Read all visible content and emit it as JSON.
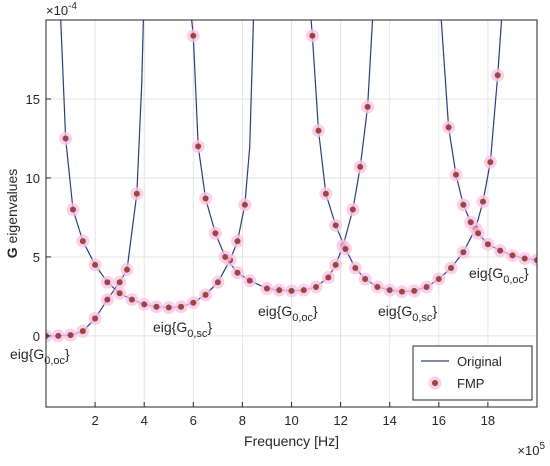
{
  "chart_data": {
    "type": "line",
    "xlabel": "Frequency [Hz]",
    "ylabel_symbol": "G",
    "ylabel": "eigenvalues",
    "x_exponent": {
      "base": "×10",
      "power": "5"
    },
    "y_exponent": {
      "base": "×10",
      "power": "-4"
    },
    "xlim": [
      0,
      20
    ],
    "ylim": [
      -4.5,
      20
    ],
    "xticks": [
      2,
      4,
      6,
      8,
      10,
      12,
      14,
      16,
      18
    ],
    "yticks": [
      0,
      5,
      10,
      15
    ],
    "grid": true,
    "legend": "lower right",
    "annotations": [
      {
        "prefix": "eig{G",
        "subscript": "0,oc",
        "suffix": "}"
      },
      {
        "prefix": "eig{G",
        "subscript": "0,sc",
        "suffix": "}"
      },
      {
        "prefix": "eig{G",
        "subscript": "0,oc",
        "suffix": "}"
      },
      {
        "prefix": "eig{G",
        "subscript": "0,sc",
        "suffix": "}"
      },
      {
        "prefix": "eig{G",
        "subscript": "0,oc",
        "suffix": "}"
      }
    ],
    "series": [
      {
        "name": "Original",
        "color": "#2b3a8f",
        "curves": [
          {
            "x": [
              0,
              0.5,
              1,
              1.5,
              2,
              2.5,
              3,
              3.3,
              3.7,
              3.9,
              4.0
            ],
            "y": [
              0,
              0,
              0.05,
              0.3,
              1.1,
              2.3,
              3.4,
              4.2,
              9,
              16,
              22
            ]
          },
          {
            "x": [
              0.6,
              0.8,
              1.1,
              1.5,
              2,
              2.5,
              3,
              3.5,
              4,
              4.5,
              5,
              5.5,
              6,
              6.5,
              7,
              7.5,
              7.8,
              8.1,
              8.3,
              8.45
            ],
            "y": [
              20,
              12.5,
              8,
              6,
              4.5,
              3.4,
              2.7,
              2.3,
              2.0,
              1.85,
              1.8,
              1.85,
              2.1,
              2.6,
              3.4,
              4.8,
              6,
              8.3,
              12,
              20
            ]
          },
          {
            "x": [
              5.8,
              6.0,
              6.2,
              6.5,
              6.9,
              7.3,
              7.8,
              8.3,
              9,
              9.5,
              10,
              10.5,
              11,
              11.5,
              11.8,
              12.1,
              12.5,
              12.8,
              13.1,
              13.3
            ],
            "y": [
              22,
              19,
              12,
              8.7,
              6.5,
              5,
              4,
              3.5,
              3,
              2.9,
              2.85,
              2.9,
              3.1,
              3.7,
              4.5,
              5.7,
              8,
              10.7,
              14.5,
              20
            ]
          },
          {
            "x": [
              10.6,
              10.85,
              11.1,
              11.4,
              11.8,
              12.2,
              12.6,
              13,
              13.5,
              14,
              14.5,
              15,
              15.5,
              16,
              16.5,
              17,
              17.5,
              17.8,
              18.1,
              18.4,
              18.6
            ],
            "y": [
              24,
              19,
              13,
              9,
              7,
              5.5,
              4.3,
              3.6,
              3.1,
              2.9,
              2.8,
              2.85,
              3.1,
              3.6,
              4.3,
              5.3,
              6.8,
              8.5,
              11,
              16.5,
              21
            ]
          },
          {
            "x": [
              16.1,
              16.4,
              16.7,
              17,
              17.3,
              17.6,
              18,
              18.5,
              19,
              19.5,
              20
            ],
            "y": [
              20,
              13.2,
              10.2,
              8.3,
              7.2,
              6.5,
              5.8,
              5.4,
              5.1,
              4.9,
              4.8
            ]
          }
        ]
      },
      {
        "name": "FMP",
        "color": "#a0443c",
        "halo": "#f7c4e8",
        "curves": [
          {
            "x": [
              0,
              0.5,
              1,
              1.5,
              2,
              2.5,
              3,
              3.3,
              3.7
            ],
            "y": [
              0,
              0,
              0.05,
              0.3,
              1.1,
              2.3,
              3.4,
              4.2,
              9
            ]
          },
          {
            "x": [
              0.8,
              1.1,
              1.5,
              2,
              2.5,
              3,
              3.5,
              4,
              4.5,
              5,
              5.5,
              6,
              6.5,
              7,
              7.5,
              7.8,
              8.1
            ],
            "y": [
              12.5,
              8,
              6,
              4.5,
              3.4,
              2.7,
              2.3,
              2.0,
              1.85,
              1.8,
              1.85,
              2.1,
              2.6,
              3.4,
              4.8,
              6,
              8.3
            ]
          },
          {
            "x": [
              6.0,
              6.2,
              6.5,
              6.9,
              7.3,
              7.8,
              8.3,
              9,
              9.5,
              10,
              10.5,
              11,
              11.5,
              11.8,
              12.1,
              12.5,
              12.8,
              13.1
            ],
            "y": [
              19,
              12,
              8.7,
              6.5,
              5,
              4,
              3.5,
              3,
              2.9,
              2.85,
              2.9,
              3.1,
              3.7,
              4.5,
              5.7,
              8,
              10.7,
              14.5
            ]
          },
          {
            "x": [
              10.85,
              11.1,
              11.4,
              11.8,
              12.2,
              12.6,
              13,
              13.5,
              14,
              14.5,
              15,
              15.5,
              16,
              16.5,
              17,
              17.5,
              17.8,
              18.1,
              18.4
            ],
            "y": [
              19,
              13,
              9,
              7,
              5.5,
              4.3,
              3.6,
              3.1,
              2.9,
              2.8,
              2.85,
              3.1,
              3.6,
              4.3,
              5.3,
              6.8,
              8.5,
              11,
              16.5
            ]
          },
          {
            "x": [
              16.4,
              16.7,
              17,
              17.3,
              17.6,
              18,
              18.5,
              19,
              19.5,
              20
            ],
            "y": [
              13.2,
              10.2,
              8.3,
              7.2,
              6.5,
              5.8,
              5.4,
              5.1,
              4.9,
              4.8
            ]
          }
        ]
      }
    ]
  }
}
